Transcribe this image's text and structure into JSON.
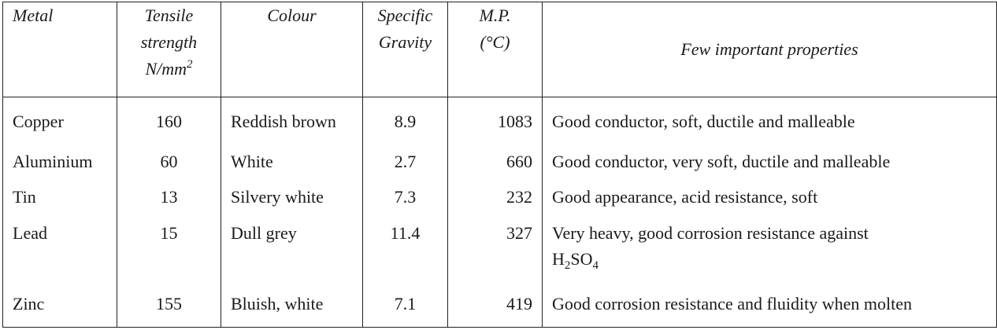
{
  "headers": {
    "metal": "Metal",
    "tensile_line1": "Tensile",
    "tensile_line2": "strength",
    "tensile_unit": "N/mm",
    "tensile_unit_sup": "2",
    "colour": "Colour",
    "sg_line1": "Specific",
    "sg_line2": "Gravity",
    "mp_line1": "M.P.",
    "mp_line2": "(°C)",
    "properties": "Few important properties"
  },
  "rows": [
    {
      "metal": "Copper",
      "tensile": "160",
      "colour": "Reddish brown",
      "sg": "8.9",
      "mp": "1083",
      "properties": "Good conductor, soft, ductile and malleable"
    },
    {
      "metal": "Aluminium",
      "tensile": "60",
      "colour": "White",
      "sg": "2.7",
      "mp": "660",
      "properties": "Good conductor, very soft, ductile and malleable"
    },
    {
      "metal": "Tin",
      "tensile": "13",
      "colour": "Silvery white",
      "sg": "7.3",
      "mp": "232",
      "properties": "Good appearance, acid resistance, soft"
    },
    {
      "metal": "Lead",
      "tensile": "15",
      "colour": "Dull grey",
      "sg": "11.4",
      "mp": "327",
      "properties": "Very heavy, good corrosion resistance against",
      "properties_chem": "H",
      "properties_sub1": "2",
      "properties_chem2": "SO",
      "properties_sub2": "4"
    },
    {
      "metal": "Zinc",
      "tensile": "155",
      "colour": "Bluish, white",
      "sg": "7.1",
      "mp": "419",
      "properties": "Good corrosion resistance and fluidity when molten"
    }
  ]
}
